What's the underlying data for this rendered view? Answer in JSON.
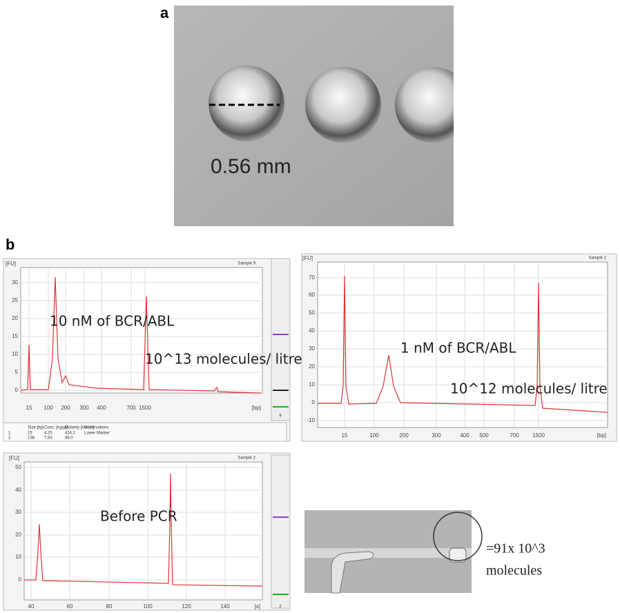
{
  "panel_labels": [
    "a",
    "b"
  ],
  "image_a": {
    "scale_label": "0.56 mm"
  },
  "chart_10nM": {
    "y_unit": "[FU]",
    "sample": "Sample 9",
    "yticks": [
      "0",
      "5",
      "10",
      "15",
      "20",
      "25",
      "30"
    ],
    "xticks": [
      "15",
      "100",
      "200",
      "300",
      "400",
      "700",
      "1500"
    ],
    "x_unit": "[bp]",
    "annotations": [
      "10 nM of BCR/ABL",
      "10^13 molecules/ litre"
    ],
    "side_label": "9",
    "table": {
      "header": [
        "Size [bp]",
        "Conc. [ng/µl]",
        "Molarity [nmol/l]",
        "Observations"
      ],
      "rows": [
        [
          "1",
          "15",
          "4.20",
          "424.2",
          "Lower Marker"
        ],
        [
          "2",
          "138",
          "7.83",
          "86.0",
          ""
        ]
      ]
    }
  },
  "chart_1nM": {
    "y_unit": "[FU]",
    "sample": "Sample 2",
    "yticks": [
      "-10",
      "0",
      "10",
      "20",
      "30",
      "40",
      "50",
      "60",
      "70"
    ],
    "xticks": [
      "15",
      "100",
      "200",
      "300",
      "400",
      "500",
      "700",
      "1500"
    ],
    "x_unit": "[bp]",
    "annotations": [
      "1 nM of BCR/ABL",
      "10^12 molecules/ litre"
    ]
  },
  "chart_before": {
    "y_unit": "[FU]",
    "sample": "Sample 2",
    "yticks": [
      "0",
      "10",
      "20",
      "30",
      "40",
      "50"
    ],
    "xticks": [
      "40",
      "60",
      "80",
      "100",
      "120",
      "140"
    ],
    "x_unit": "[s]",
    "annotations": [
      "Before PCR"
    ],
    "side_label": "2"
  },
  "image_droplet": {
    "lines": [
      "=91x 10^3",
      "molecules"
    ]
  }
}
